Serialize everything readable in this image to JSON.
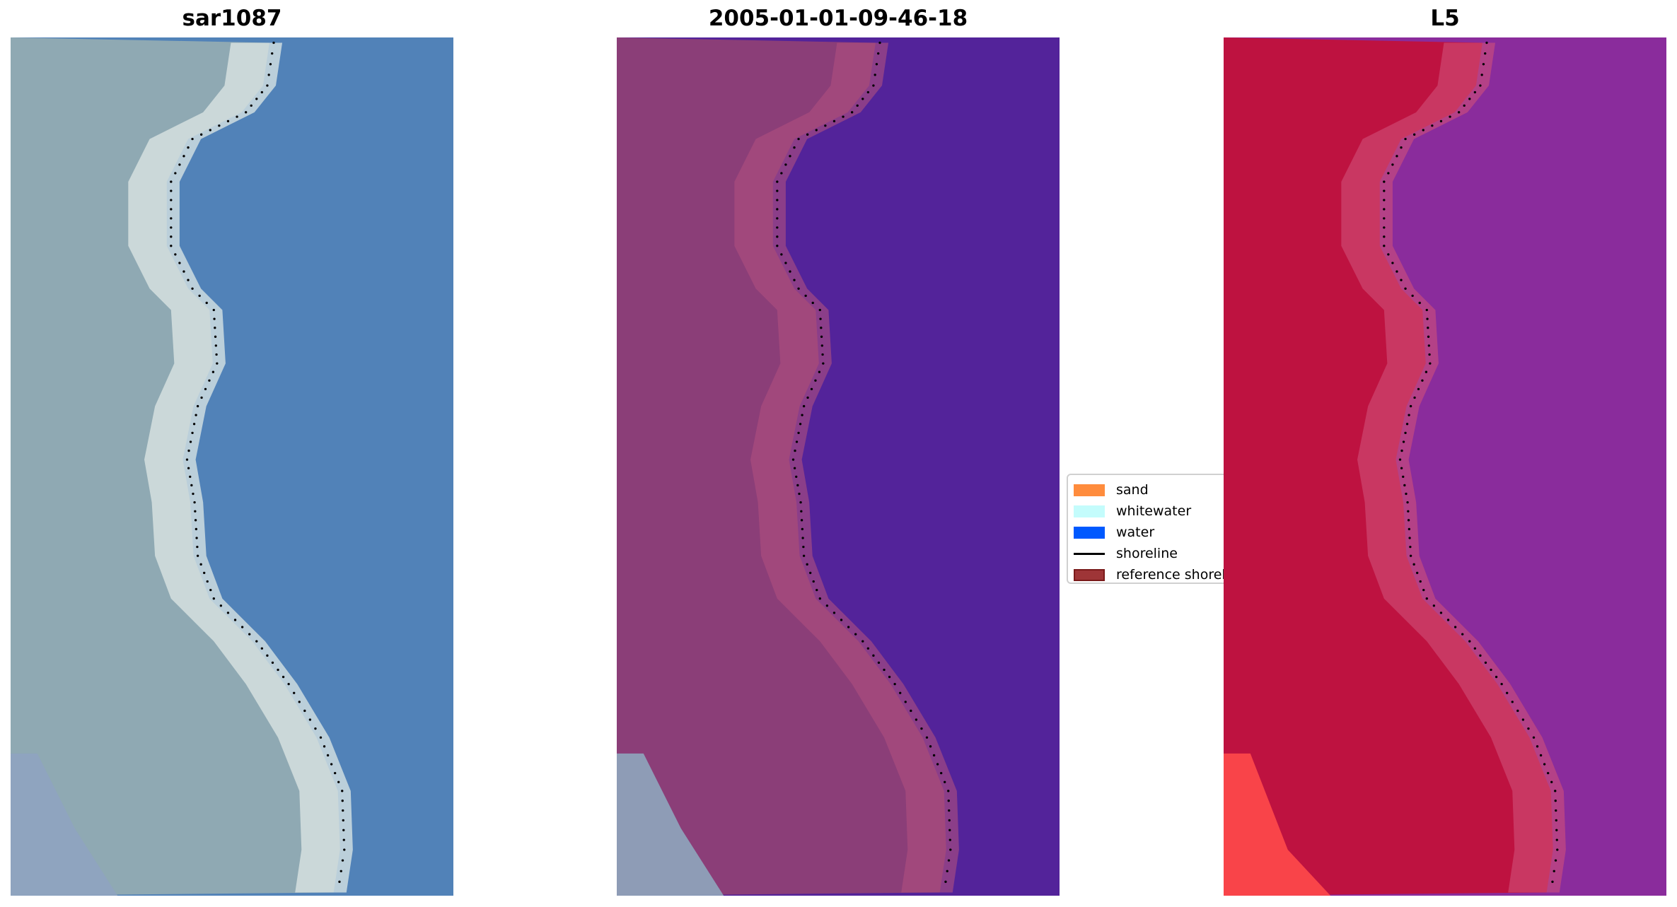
{
  "panels": [
    {
      "title": "sar1087",
      "land": "#8fa9b3",
      "water": "#5182b8",
      "strip": "#dfe8e6",
      "corner": "#8fa3c0"
    },
    {
      "title": "2005-01-01-09-46-18",
      "land": "#8b3e78",
      "water": "#53239a",
      "strip": "#b0507f",
      "corner": "#8ea6bd"
    },
    {
      "title": "L5",
      "land": "#be1240",
      "water": "#8a2c9c",
      "strip": "#d0507a",
      "corner": "#ff4a4a"
    }
  ],
  "legend": {
    "items": [
      {
        "label": "sand",
        "color": "#ff8c3d",
        "kind": "patch"
      },
      {
        "label": "whitewater",
        "color": "#c4fcfc",
        "kind": "patch"
      },
      {
        "label": "water",
        "color": "#0059ff",
        "kind": "patch"
      },
      {
        "label": "shoreline",
        "color": "#000000",
        "kind": "line"
      },
      {
        "label": "reference shoreline",
        "color": "#9e3537",
        "kind": "patch"
      }
    ]
  }
}
